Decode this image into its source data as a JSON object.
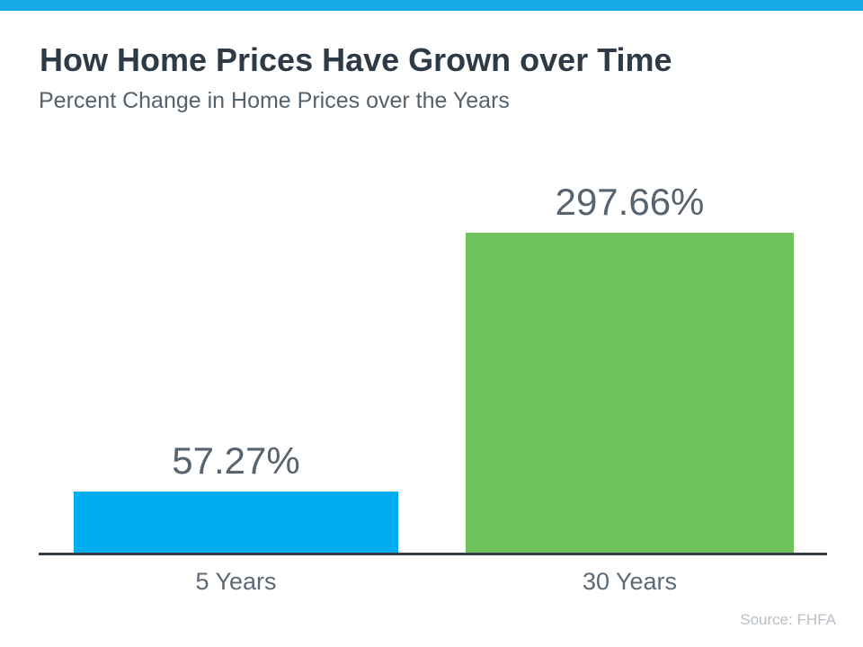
{
  "page": {
    "background": "#ffffff",
    "top_bar_color": "#18a9e8"
  },
  "header": {
    "title": "How Home Prices Have Grown over Time",
    "subtitle": "Percent Change in Home Prices over the Years"
  },
  "chart_data": {
    "type": "bar",
    "title": "How Home Prices Have Grown over Time",
    "subtitle": "Percent Change in Home Prices over the Years",
    "categories": [
      "5 Years",
      "30 Years"
    ],
    "values": [
      57.27,
      297.66
    ],
    "value_labels": [
      "57.27%",
      "297.66%"
    ],
    "bar_colors": [
      "#00adee",
      "#6fc25c"
    ],
    "xlabel": "",
    "ylabel": "",
    "ylim": [
      0,
      310
    ],
    "grid": false,
    "legend": false,
    "data_label_color": "#57636e",
    "category_label_color": "#5b6a76",
    "axis_line_color": "#343c44"
  },
  "footer": {
    "source_label": "Source: FHFA"
  }
}
